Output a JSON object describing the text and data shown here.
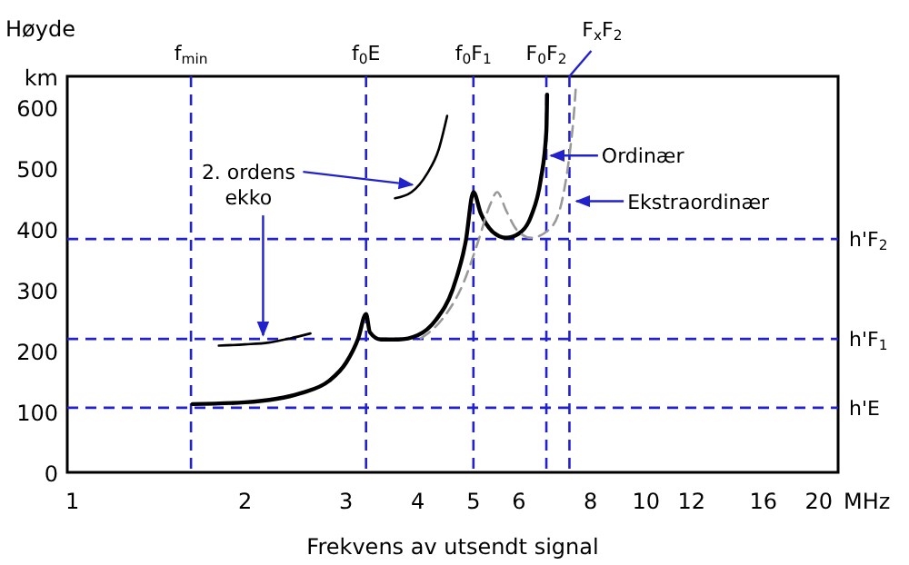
{
  "chart_data": {
    "type": "line",
    "ylabel": "Høyde",
    "xlabel": "Frekvens av utsendt signal",
    "log": "x",
    "grid": false,
    "marker": "none",
    "xlim": [
      0.98,
      21.6
    ],
    "xticks": [
      1,
      2,
      3,
      4,
      5,
      6,
      8,
      10,
      12,
      16,
      20
    ],
    "ylim": [
      0,
      650
    ],
    "yticks": [
      0,
      100,
      200,
      300,
      400,
      500,
      600,
      {
        "value": 650,
        "label": "km"
      }
    ],
    "series": [
      {
        "color": "#000000",
        "line_style": "solid",
        "x": [
          1.62,
          2,
          2.5,
          2.8,
          3.0,
          3.15,
          3.25,
          3.3,
          3.45,
          3.7,
          4.0,
          4.3,
          4.6,
          4.85,
          5.0,
          5.15,
          5.4,
          5.7,
          6.0,
          6.3,
          6.55,
          6.7,
          6.72
        ],
        "values": [
          112,
          115,
          130,
          150,
          180,
          220,
          260,
          230,
          218,
          218,
          225,
          250,
          300,
          380,
          460,
          425,
          395,
          385,
          392,
          420,
          480,
          560,
          620
        ]
      },
      {
        "color": "#000000",
        "line_style": "solid",
        "x": [
          1.8,
          2.0,
          2.2,
          2.4,
          2.6
        ],
        "values": [
          208,
          210,
          213,
          220,
          228
        ]
      },
      {
        "color": "#000000",
        "line_style": "solid",
        "x": [
          3.65,
          3.9,
          4.15,
          4.35,
          4.5
        ],
        "values": [
          450,
          460,
          490,
          530,
          585
        ]
      },
      {
        "color": "#999999",
        "line_style": "dashed",
        "x": [
          4.05,
          4.4,
          4.8,
          5.1,
          5.35,
          5.5,
          5.7,
          5.95,
          6.3,
          6.8,
          7.15,
          7.35,
          7.5,
          7.55
        ],
        "values": [
          220,
          250,
          310,
          380,
          440,
          460,
          430,
          398,
          385,
          400,
          450,
          520,
          600,
          640
        ]
      }
    ],
    "ref_lines": [
      {
        "axis": "x",
        "value": 1.61,
        "label": "f$_{min}$",
        "color": "#2222cc",
        "line_style": "dashed"
      },
      {
        "axis": "x",
        "value": 3.25,
        "label": "f$_{0}$E",
        "color": "#2222cc",
        "line_style": "dashed"
      },
      {
        "axis": "x",
        "value": 5.0,
        "label": "f$_{0}$F$_{1}$",
        "color": "#2222cc",
        "line_style": "dashed"
      },
      {
        "axis": "x",
        "value": 6.7,
        "label": "F$_{0}$F$_{2}$",
        "color": "#2222cc",
        "line_style": "dashed"
      },
      {
        "axis": "x",
        "value": 7.35,
        "label": "F$_{x}$F$_{2}$",
        "color": "#2222cc",
        "line_style": "dashed"
      },
      {
        "axis": "y",
        "value": 383,
        "label": "h'F$_{2}$",
        "color": "#2222cc",
        "line_style": "dashed"
      },
      {
        "axis": "y",
        "value": 219,
        "label": "h'F$_{1}$",
        "color": "#2222cc",
        "line_style": "dashed"
      },
      {
        "axis": "y",
        "value": 106,
        "label": "h'E",
        "color": "#2222cc",
        "line_style": "dashed"
      }
    ],
    "annotations": [
      {
        "text": "2. ordens ekko",
        "x": 2.15,
        "y": 213
      },
      {
        "text": "Ordinær",
        "x": 6.72,
        "y": 520
      },
      {
        "text": "Ekstraordinær",
        "x": 7.45,
        "y": 445
      },
      "MHz"
    ]
  }
}
